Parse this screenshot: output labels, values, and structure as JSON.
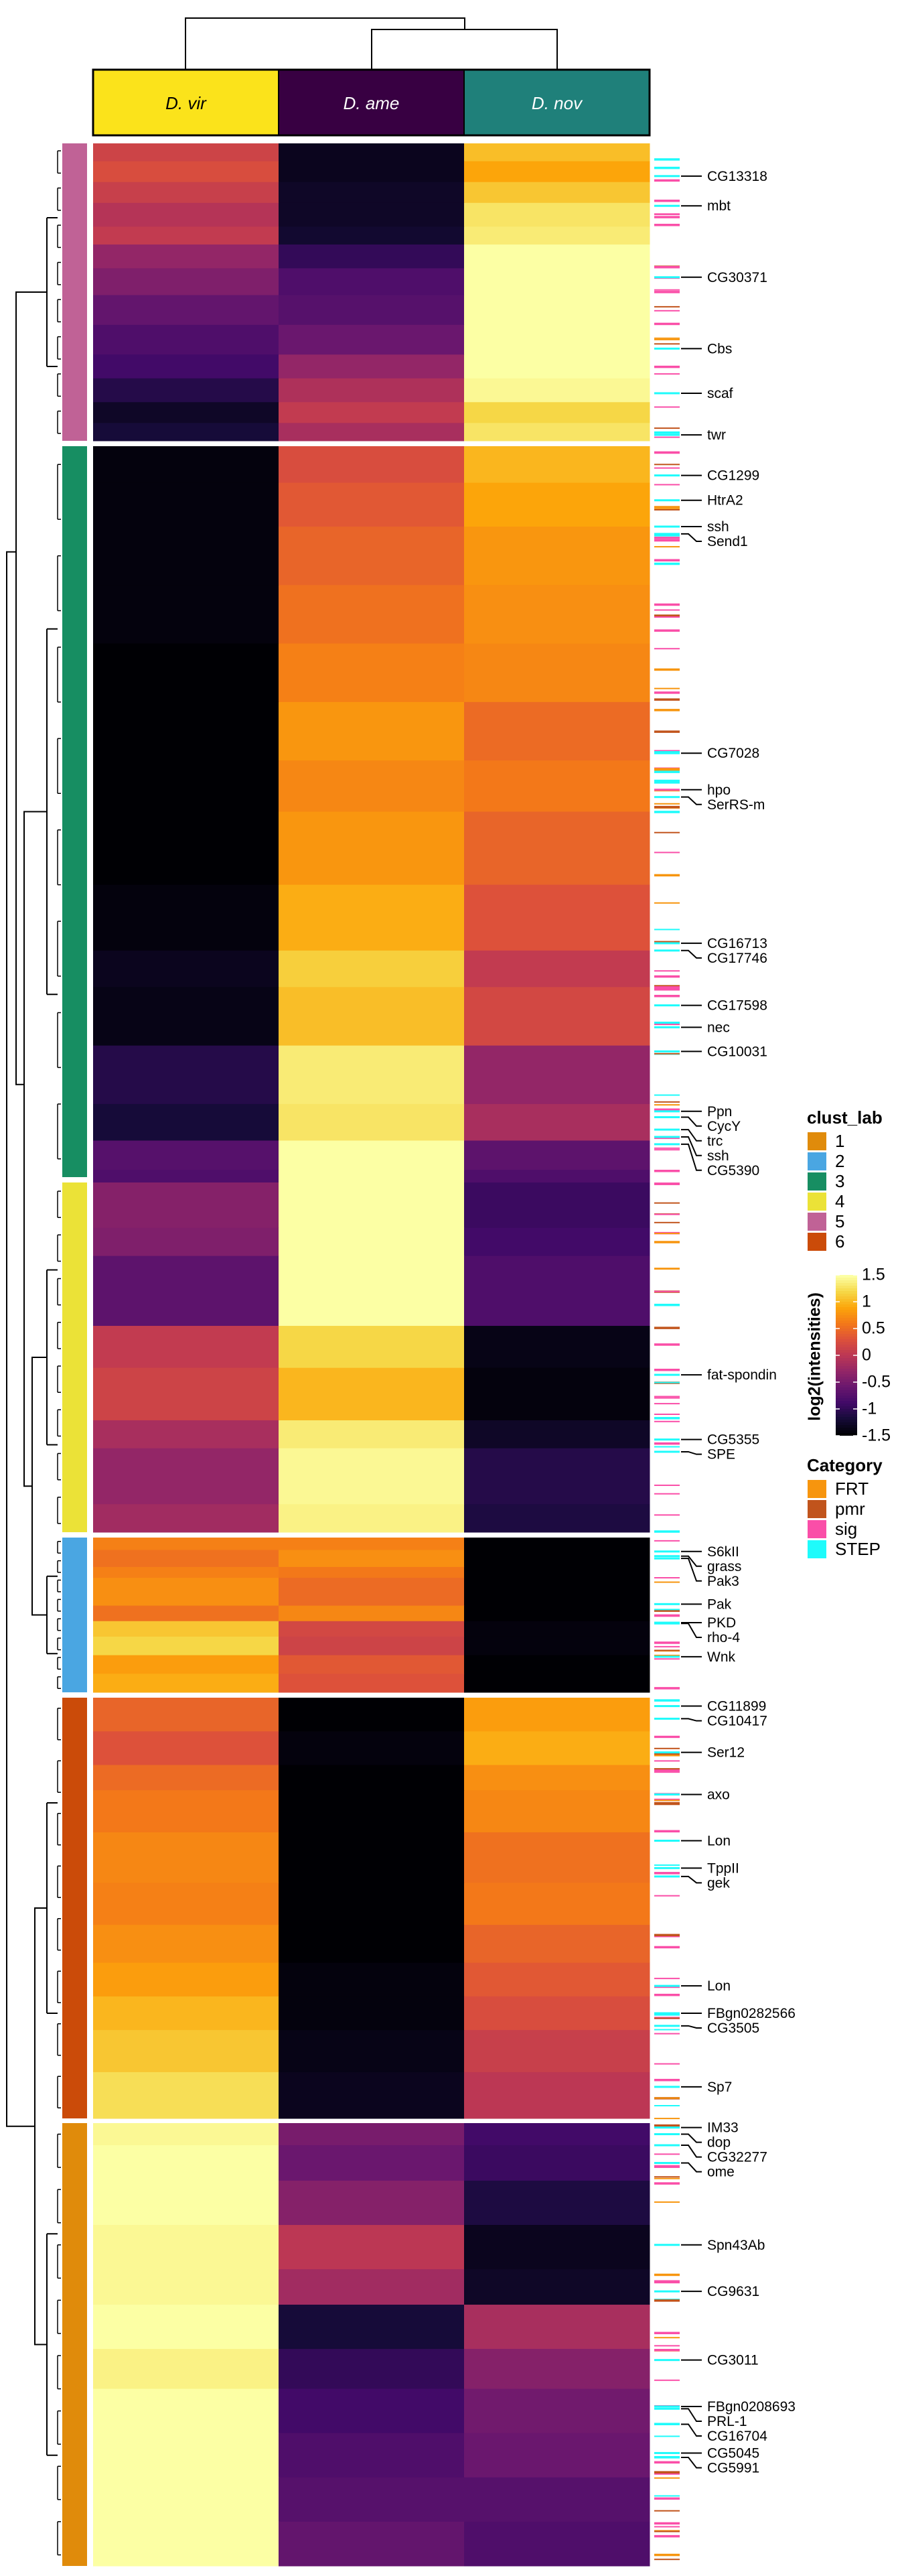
{
  "chart_data": {
    "type": "heatmap",
    "title": "",
    "columns": [
      "D. vir",
      "D. ame",
      "D. nov"
    ],
    "column_annotation_colors": [
      "#FBE31B",
      "#380042",
      "#1F807A"
    ],
    "colorbar": {
      "title": "log2(intensities)",
      "range": [
        -1.5,
        1.5
      ],
      "ticks": [
        "1.5",
        "1",
        "0.5",
        "0",
        "-0.5",
        "-1",
        "-1.5"
      ],
      "tick_values": [
        1.5,
        1,
        0.5,
        0,
        -0.5,
        -1,
        -1.5
      ],
      "colormap": "inferno"
    },
    "cluster_legend": {
      "title": "clust_lab",
      "items": [
        {
          "label": "1",
          "color": "#E08B0B"
        },
        {
          "label": "2",
          "color": "#4AA6E2"
        },
        {
          "label": "3",
          "color": "#178E62"
        },
        {
          "label": "4",
          "color": "#EBE237"
        },
        {
          "label": "5",
          "color": "#C06296"
        },
        {
          "label": "6",
          "color": "#CB4B09"
        }
      ]
    },
    "category_legend": {
      "title": "Category",
      "items": [
        {
          "label": "FRT",
          "color": "#F7950E"
        },
        {
          "label": "pmr",
          "color": "#C1541C"
        },
        {
          "label": "sig",
          "color": "#FA4EA8"
        },
        {
          "label": "STEP",
          "color": "#1EFBFB"
        }
      ]
    },
    "clusters_top_to_bottom": [
      {
        "cluster": "5",
        "rows": 60,
        "bands": [
          {
            "frac": 0.06,
            "values": [
              0.15,
              -1.35,
              1.05
            ]
          },
          {
            "frac": 0.07,
            "values": [
              0.25,
              -1.35,
              0.9
            ]
          },
          {
            "frac": 0.07,
            "values": [
              0.1,
              -1.3,
              1.1
            ]
          },
          {
            "frac": 0.08,
            "values": [
              -0.05,
              -1.3,
              1.3
            ]
          },
          {
            "frac": 0.06,
            "values": [
              0.05,
              -1.25,
              1.35
            ]
          },
          {
            "frac": 0.08,
            "values": [
              -0.3,
              -1.0,
              1.5
            ]
          },
          {
            "frac": 0.09,
            "values": [
              -0.45,
              -0.8,
              1.5
            ]
          },
          {
            "frac": 0.1,
            "values": [
              -0.65,
              -0.75,
              1.5
            ]
          },
          {
            "frac": 0.1,
            "values": [
              -0.8,
              -0.6,
              1.5
            ]
          },
          {
            "frac": 0.08,
            "values": [
              -0.9,
              -0.3,
              1.5
            ]
          },
          {
            "frac": 0.08,
            "values": [
              -1.1,
              -0.1,
              1.45
            ]
          },
          {
            "frac": 0.07,
            "values": [
              -1.3,
              0.05,
              1.2
            ]
          },
          {
            "frac": 0.06,
            "values": [
              -1.2,
              -0.15,
              1.3
            ]
          }
        ]
      },
      {
        "cluster": "3",
        "rows": 150,
        "bands": [
          {
            "frac": 0.05,
            "values": [
              -1.45,
              0.25,
              1.0
            ]
          },
          {
            "frac": 0.06,
            "values": [
              -1.45,
              0.35,
              0.9
            ]
          },
          {
            "frac": 0.08,
            "values": [
              -1.45,
              0.45,
              0.8
            ]
          },
          {
            "frac": 0.08,
            "values": [
              -1.45,
              0.55,
              0.75
            ]
          },
          {
            "frac": 0.08,
            "values": [
              -1.5,
              0.65,
              0.7
            ]
          },
          {
            "frac": 0.08,
            "values": [
              -1.5,
              0.8,
              0.5
            ]
          },
          {
            "frac": 0.07,
            "values": [
              -1.5,
              0.7,
              0.6
            ]
          },
          {
            "frac": 0.1,
            "values": [
              -1.5,
              0.8,
              0.45
            ]
          },
          {
            "frac": 0.09,
            "values": [
              -1.45,
              0.95,
              0.3
            ]
          },
          {
            "frac": 0.05,
            "values": [
              -1.35,
              1.15,
              0.05
            ]
          },
          {
            "frac": 0.08,
            "values": [
              -1.4,
              1.05,
              0.2
            ]
          },
          {
            "frac": 0.08,
            "values": [
              -1.1,
              1.35,
              -0.3
            ]
          },
          {
            "frac": 0.05,
            "values": [
              -1.2,
              1.3,
              -0.15
            ]
          },
          {
            "frac": 0.04,
            "values": [
              -0.75,
              1.5,
              -0.7
            ]
          },
          {
            "frac": 0.05,
            "values": [
              -0.8,
              1.5,
              -0.8
            ]
          },
          {
            "frac": 0.06,
            "values": [
              -1.0,
              1.45,
              -0.45
            ]
          }
        ]
      },
      {
        "cluster": "4",
        "rows": 72,
        "bands": [
          {
            "frac": 0.13,
            "values": [
              -0.4,
              1.5,
              -0.95
            ]
          },
          {
            "frac": 0.08,
            "values": [
              -0.45,
              1.5,
              -0.9
            ]
          },
          {
            "frac": 0.2,
            "values": [
              -0.7,
              1.5,
              -0.8
            ]
          },
          {
            "frac": 0.12,
            "values": [
              0.05,
              1.2,
              -1.4
            ]
          },
          {
            "frac": 0.15,
            "values": [
              0.15,
              1.0,
              -1.45
            ]
          },
          {
            "frac": 0.08,
            "values": [
              -0.15,
              1.35,
              -1.3
            ]
          },
          {
            "frac": 0.16,
            "values": [
              -0.3,
              1.45,
              -1.1
            ]
          },
          {
            "frac": 0.08,
            "values": [
              -0.2,
              1.4,
              -1.15
            ]
          }
        ]
      },
      {
        "cluster": "2",
        "rows": 32,
        "bands": [
          {
            "frac": 0.08,
            "values": [
              0.65,
              0.65,
              -1.5
            ]
          },
          {
            "frac": 0.11,
            "values": [
              0.55,
              0.75,
              -1.5
            ]
          },
          {
            "frac": 0.07,
            "values": [
              0.65,
              0.6,
              -1.5
            ]
          },
          {
            "frac": 0.18,
            "values": [
              0.75,
              0.5,
              -1.5
            ]
          },
          {
            "frac": 0.1,
            "values": [
              0.55,
              0.7,
              -1.5
            ]
          },
          {
            "frac": 0.1,
            "values": [
              1.1,
              0.2,
              -1.45
            ]
          },
          {
            "frac": 0.12,
            "values": [
              1.2,
              0.15,
              -1.45
            ]
          },
          {
            "frac": 0.12,
            "values": [
              0.85,
              0.35,
              -1.5
            ]
          },
          {
            "frac": 0.12,
            "values": [
              0.95,
              0.3,
              -1.5
            ]
          }
        ]
      },
      {
        "cluster": "6",
        "rows": 87,
        "bands": [
          {
            "frac": 0.08,
            "values": [
              0.45,
              -1.5,
              0.85
            ]
          },
          {
            "frac": 0.08,
            "values": [
              0.3,
              -1.45,
              0.95
            ]
          },
          {
            "frac": 0.06,
            "values": [
              0.5,
              -1.5,
              0.75
            ]
          },
          {
            "frac": 0.1,
            "values": [
              0.6,
              -1.5,
              0.7
            ]
          },
          {
            "frac": 0.12,
            "values": [
              0.7,
              -1.5,
              0.55
            ]
          },
          {
            "frac": 0.1,
            "values": [
              0.65,
              -1.5,
              0.6
            ]
          },
          {
            "frac": 0.09,
            "values": [
              0.75,
              -1.5,
              0.45
            ]
          },
          {
            "frac": 0.08,
            "values": [
              0.85,
              -1.45,
              0.35
            ]
          },
          {
            "frac": 0.08,
            "values": [
              1.0,
              -1.45,
              0.25
            ]
          },
          {
            "frac": 0.1,
            "values": [
              1.1,
              -1.4,
              0.1
            ]
          },
          {
            "frac": 0.11,
            "values": [
              1.25,
              -1.35,
              0.0
            ]
          }
        ]
      },
      {
        "cluster": "1",
        "rows": 92,
        "bands": [
          {
            "frac": 0.05,
            "values": [
              1.45,
              -0.5,
              -0.9
            ]
          },
          {
            "frac": 0.08,
            "values": [
              1.5,
              -0.6,
              -0.95
            ]
          },
          {
            "frac": 0.1,
            "values": [
              1.5,
              -0.4,
              -1.15
            ]
          },
          {
            "frac": 0.1,
            "values": [
              1.45,
              0.0,
              -1.35
            ]
          },
          {
            "frac": 0.08,
            "values": [
              1.45,
              -0.2,
              -1.3
            ]
          },
          {
            "frac": 0.1,
            "values": [
              1.5,
              -1.2,
              -0.15
            ]
          },
          {
            "frac": 0.09,
            "values": [
              1.4,
              -1.0,
              -0.4
            ]
          },
          {
            "frac": 0.1,
            "values": [
              1.5,
              -0.9,
              -0.55
            ]
          },
          {
            "frac": 0.1,
            "values": [
              1.5,
              -0.8,
              -0.6
            ]
          },
          {
            "frac": 0.1,
            "values": [
              1.5,
              -0.75,
              -0.75
            ]
          },
          {
            "frac": 0.1,
            "values": [
              1.5,
              -0.65,
              -0.8
            ]
          }
        ]
      }
    ],
    "labeled_genes": [
      {
        "label": "CG13318",
        "cluster": "5",
        "pos": 0.11,
        "category": "STEP"
      },
      {
        "label": "mbt",
        "cluster": "5",
        "pos": 0.21,
        "category": "STEP"
      },
      {
        "label": "CG30371",
        "cluster": "5",
        "pos": 0.45,
        "category": "STEP"
      },
      {
        "label": "Cbs",
        "cluster": "5",
        "pos": 0.69,
        "category": "STEP"
      },
      {
        "label": "scaf",
        "cluster": "5",
        "pos": 0.84,
        "category": "STEP"
      },
      {
        "label": "twr",
        "cluster": "5",
        "pos": 0.98,
        "category": "STEP"
      },
      {
        "label": "CG1299",
        "cluster": "3",
        "pos": 0.04,
        "category": "STEP"
      },
      {
        "label": "HtrA2",
        "cluster": "3",
        "pos": 0.074,
        "category": "STEP"
      },
      {
        "label": "ssh",
        "cluster": "3",
        "pos": 0.11,
        "category": "STEP"
      },
      {
        "label": "Send1",
        "cluster": "3",
        "pos": 0.12,
        "category": "STEP"
      },
      {
        "label": "CG7028",
        "cluster": "3",
        "pos": 0.42,
        "category": "STEP"
      },
      {
        "label": "hpo",
        "cluster": "3",
        "pos": 0.47,
        "category": "sig"
      },
      {
        "label": "SerRS-m",
        "cluster": "3",
        "pos": 0.48,
        "category": "STEP"
      },
      {
        "label": "CG16713",
        "cluster": "3",
        "pos": 0.68,
        "category": "STEP"
      },
      {
        "label": "CG17746",
        "cluster": "3",
        "pos": 0.69,
        "category": "STEP"
      },
      {
        "label": "CG17598",
        "cluster": "3",
        "pos": 0.765,
        "category": "STEP"
      },
      {
        "label": "nec",
        "cluster": "3",
        "pos": 0.795,
        "category": "STEP"
      },
      {
        "label": "CG10031",
        "cluster": "3",
        "pos": 0.828,
        "category": "STEP"
      },
      {
        "label": "Ppn",
        "cluster": "3",
        "pos": 0.91,
        "category": "STEP"
      },
      {
        "label": "CycY",
        "cluster": "3",
        "pos": 0.918,
        "category": "STEP"
      },
      {
        "label": "trc",
        "cluster": "3",
        "pos": 0.935,
        "category": "STEP"
      },
      {
        "label": "ssh",
        "cluster": "3",
        "pos": 0.945,
        "category": "STEP"
      },
      {
        "label": "CG5390",
        "cluster": "3",
        "pos": 0.955,
        "category": "STEP"
      },
      {
        "label": "fat-spondin",
        "cluster": "4",
        "pos": 0.55,
        "category": "STEP"
      },
      {
        "label": "CG5355",
        "cluster": "4",
        "pos": 0.735,
        "category": "STEP"
      },
      {
        "label": "SPE",
        "cluster": "4",
        "pos": 0.77,
        "category": "STEP"
      },
      {
        "label": "S6kII",
        "cluster": "2",
        "pos": 0.09,
        "category": "STEP"
      },
      {
        "label": "grass",
        "cluster": "2",
        "pos": 0.12,
        "category": "STEP"
      },
      {
        "label": "Pak3",
        "cluster": "2",
        "pos": 0.135,
        "category": "STEP"
      },
      {
        "label": "Pak",
        "cluster": "2",
        "pos": 0.43,
        "category": "STEP"
      },
      {
        "label": "PKD",
        "cluster": "2",
        "pos": 0.55,
        "category": "STEP"
      },
      {
        "label": "rho-4",
        "cluster": "2",
        "pos": 0.555,
        "category": "STEP"
      },
      {
        "label": "Wnk",
        "cluster": "2",
        "pos": 0.77,
        "category": "STEP"
      },
      {
        "label": "CG11899",
        "cluster": "6",
        "pos": 0.02,
        "category": "STEP"
      },
      {
        "label": "CG10417",
        "cluster": "6",
        "pos": 0.05,
        "category": "STEP"
      },
      {
        "label": "Ser12",
        "cluster": "6",
        "pos": 0.13,
        "category": "STEP"
      },
      {
        "label": "axo",
        "cluster": "6",
        "pos": 0.23,
        "category": "STEP"
      },
      {
        "label": "Lon",
        "cluster": "6",
        "pos": 0.34,
        "category": "STEP"
      },
      {
        "label": "TppII",
        "cluster": "6",
        "pos": 0.405,
        "category": "STEP"
      },
      {
        "label": "gek",
        "cluster": "6",
        "pos": 0.425,
        "category": "STEP"
      },
      {
        "label": "Lon",
        "cluster": "6",
        "pos": 0.685,
        "category": "STEP"
      },
      {
        "label": "FBgn0282566",
        "cluster": "6",
        "pos": 0.75,
        "category": "STEP"
      },
      {
        "label": "CG3505",
        "cluster": "6",
        "pos": 0.78,
        "category": "STEP"
      },
      {
        "label": "Sp7",
        "cluster": "6",
        "pos": 0.925,
        "category": "STEP"
      },
      {
        "label": "IM33",
        "cluster": "1",
        "pos": 0.01,
        "category": "STEP"
      },
      {
        "label": "dop",
        "cluster": "1",
        "pos": 0.025,
        "category": "STEP"
      },
      {
        "label": "CG32277",
        "cluster": "1",
        "pos": 0.05,
        "category": "STEP"
      },
      {
        "label": "ome",
        "cluster": "1",
        "pos": 0.09,
        "category": "STEP"
      },
      {
        "label": "Spn43Ab",
        "cluster": "1",
        "pos": 0.275,
        "category": "STEP"
      },
      {
        "label": "CG9631",
        "cluster": "1",
        "pos": 0.38,
        "category": "STEP"
      },
      {
        "label": "CG3011",
        "cluster": "1",
        "pos": 0.535,
        "category": "STEP"
      },
      {
        "label": "FBgn0208693",
        "cluster": "1",
        "pos": 0.64,
        "category": "STEP"
      },
      {
        "label": "PRL-1",
        "cluster": "1",
        "pos": 0.645,
        "category": "STEP"
      },
      {
        "label": "CG16704",
        "cluster": "1",
        "pos": 0.68,
        "category": "STEP"
      },
      {
        "label": "CG5045",
        "cluster": "1",
        "pos": 0.745,
        "category": "STEP"
      },
      {
        "label": "CG5991",
        "cluster": "1",
        "pos": 0.755,
        "category": "STEP"
      }
    ]
  }
}
